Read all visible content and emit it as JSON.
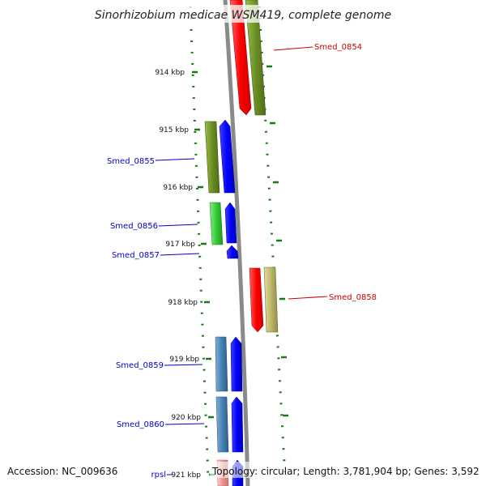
{
  "title": "Sinorhizobium medicae WSM419, complete genome",
  "footer": {
    "accession": "Accession: NC_009636",
    "summary": "Topology: circular; Length: 3,781,904 bp; Genes: 3,592"
  },
  "ticks": [
    "914 kbp",
    "915 kbp",
    "916 kbp",
    "917 kbp",
    "918 kbp",
    "919 kbp",
    "920 kbp",
    "921 kbp"
  ],
  "gene_labels": {
    "smed_0854": "Smed_0854",
    "smed_0855": "Smed_0855",
    "smed_0856": "Smed_0856",
    "smed_0857": "Smed_0857",
    "smed_0858": "Smed_0858",
    "smed_0859": "Smed_0859",
    "smed_0860": "Smed_0860",
    "rpsl": "rpsl"
  },
  "colors": {
    "forward_label": "#cc0000",
    "reverse_label": "#0000cc",
    "tick_dots": "#1a7a1a",
    "backbone": "#888888",
    "red": "#ff0000",
    "blue": "#0000ff",
    "olive": "#6b8e23",
    "green": "#33cc33",
    "khaki": "#bdb76b",
    "steelblue": "#4682b4"
  }
}
